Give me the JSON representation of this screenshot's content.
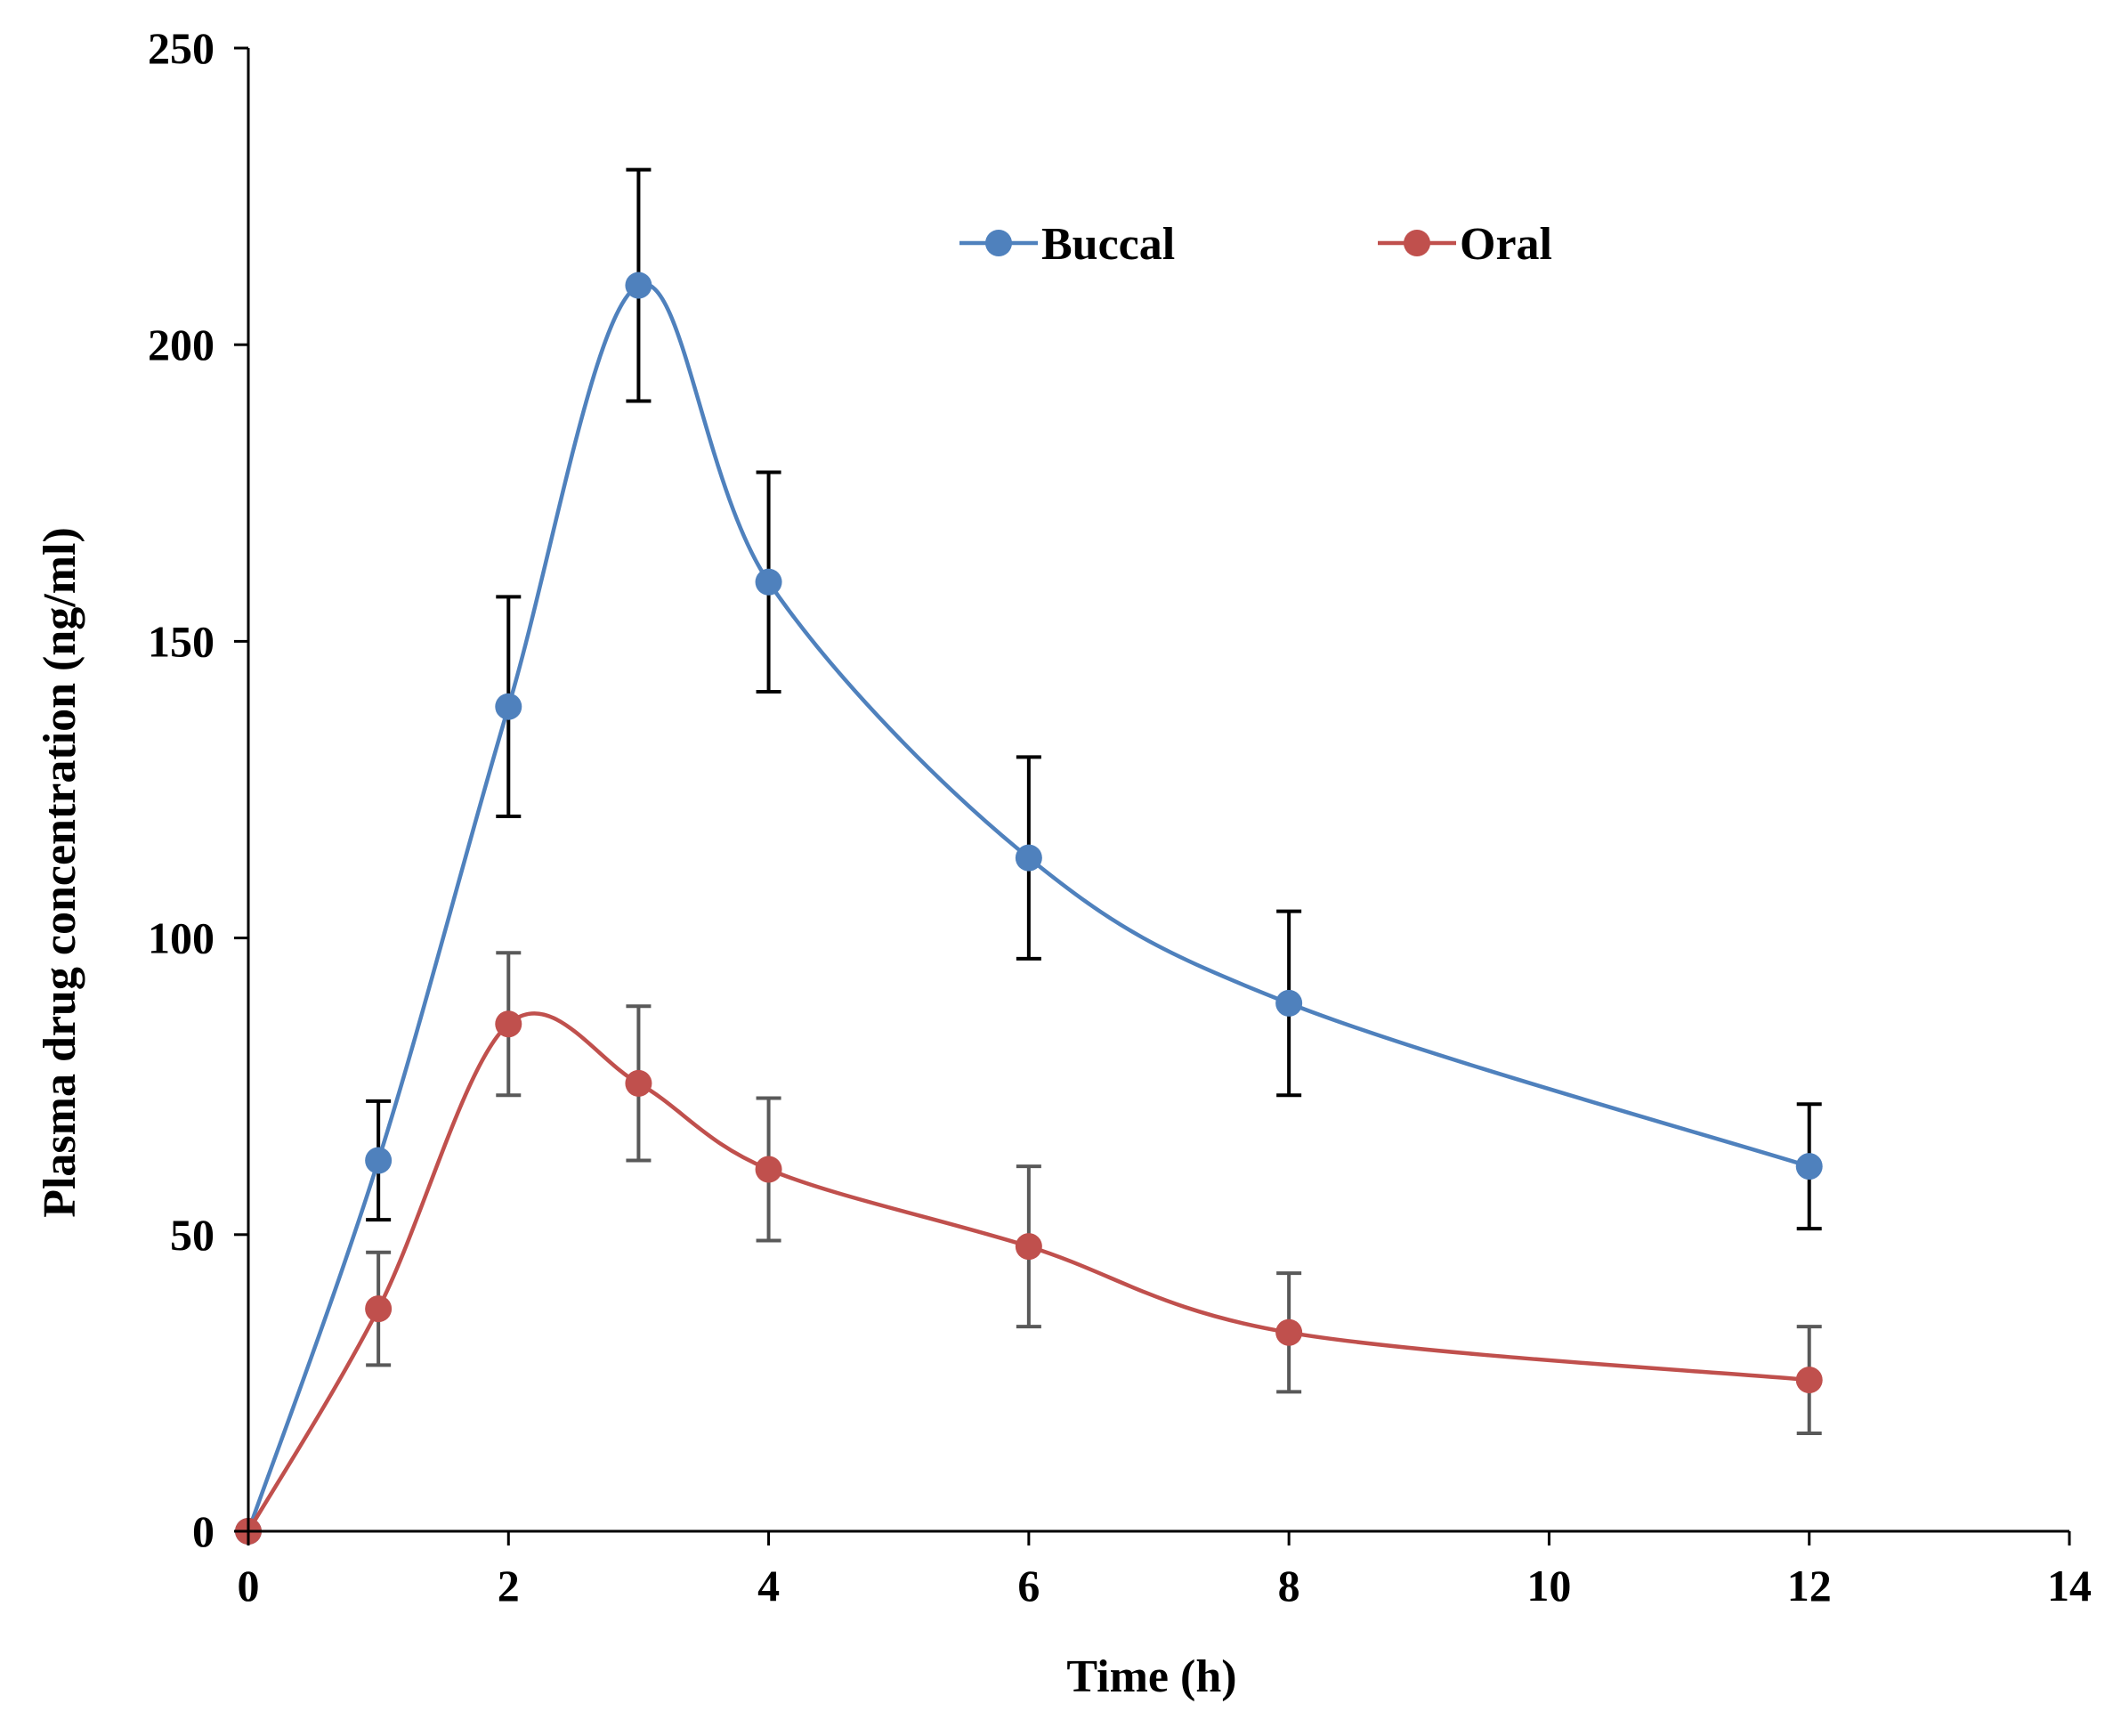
{
  "chart_data": {
    "type": "line",
    "title": "",
    "xlabel": "Time (h)",
    "ylabel": "Plasma drug concentration (ng/ml)",
    "xlim": [
      0,
      14
    ],
    "ylim": [
      0,
      250
    ],
    "xticks": [
      0,
      2,
      4,
      6,
      8,
      10,
      12,
      14
    ],
    "yticks": [
      0,
      50,
      100,
      150,
      200,
      250
    ],
    "grid": false,
    "legend_position": "top-center",
    "smooth": true,
    "series": [
      {
        "name": "Buccal",
        "color": "#4f81bd",
        "error_bar_color": "#000000",
        "x": [
          0,
          1,
          2,
          3,
          4,
          6,
          8,
          12
        ],
        "values": [
          0,
          62.5,
          139,
          210,
          160,
          113.5,
          89,
          61.5
        ],
        "errors": [
          0,
          10,
          18.5,
          19.5,
          18.5,
          17,
          15.5,
          10.5
        ]
      },
      {
        "name": "Oral",
        "color": "#c0504d",
        "error_bar_color": "#595959",
        "x": [
          0,
          1,
          2,
          3,
          4,
          6,
          8,
          12
        ],
        "values": [
          0,
          37.5,
          85.5,
          75.5,
          61,
          48,
          33.5,
          25.5
        ],
        "errors": [
          0,
          9.5,
          12,
          13,
          12,
          13.5,
          10,
          9
        ]
      }
    ]
  }
}
